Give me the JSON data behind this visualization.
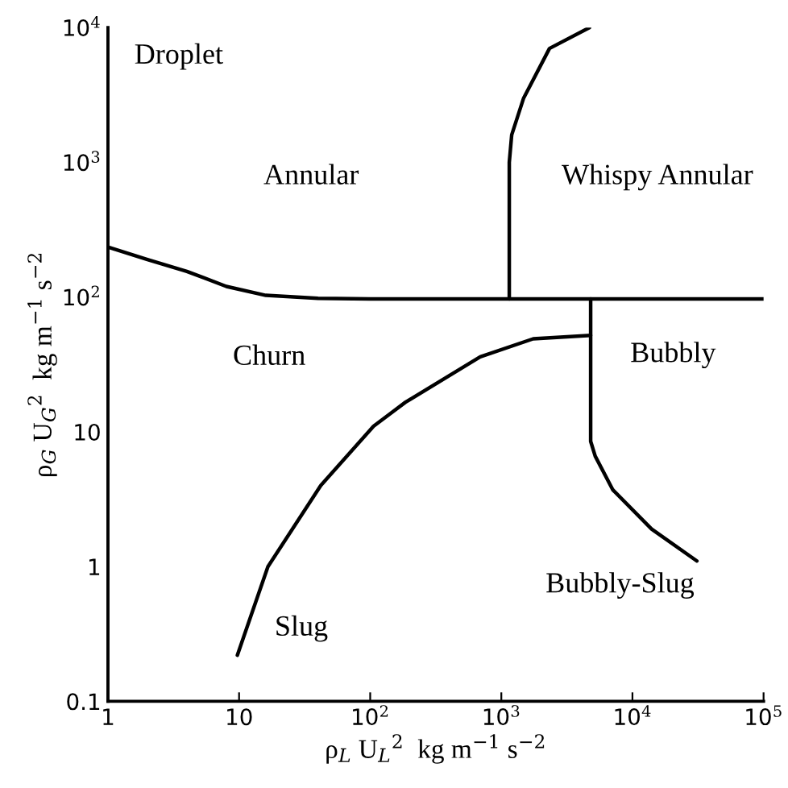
{
  "chart_data": {
    "type": "line",
    "xlabel": "ρ$_{L}$ U$_{L}$$^{2}$  kg m$^{−1}$ s$^{−2}$",
    "ylabel": "ρ$_{G}$ U$_{G}$$^{2}$  kg m$^{−1}$ s$^{−2}$",
    "log": "xy",
    "xlim": [
      1,
      100000
    ],
    "ylim": [
      0.1,
      10000
    ],
    "xticks": [
      1,
      10,
      {
        "value": 100,
        "label": "10$^{2}$"
      },
      {
        "value": 1000,
        "label": "10$^{3}$"
      },
      {
        "value": 10000,
        "label": "10$^{4}$"
      },
      {
        "value": 100000,
        "label": "10$^{5}$"
      }
    ],
    "yticks": [
      0.1,
      1,
      10,
      {
        "value": 100,
        "label": "10$^{2}$"
      },
      {
        "value": 1000,
        "label": "10$^{3}$"
      },
      {
        "value": 10000,
        "label": "10$^{4}$"
      }
    ],
    "grid": false,
    "marker": "none",
    "line_style": "solid",
    "series": [
      {
        "color": "#000000",
        "x": [
          1,
          2,
          4,
          8,
          16,
          40,
          100,
          1000,
          100000
        ],
        "values": [
          235,
          190,
          155,
          120,
          103,
          98,
          97,
          97,
          97
        ]
      },
      {
        "color": "#000000",
        "x": [
          1150,
          1150,
          1150,
          1200,
          1480,
          2330,
          4700
        ],
        "values": [
          97,
          620,
          1000,
          1600,
          3000,
          7000,
          10000
        ]
      },
      {
        "color": "#000000",
        "x": [
          4800,
          4800,
          4800,
          5200,
          7100,
          14000,
          31000
        ],
        "values": [
          97,
          52,
          8.5,
          6.6,
          3.7,
          1.9,
          1.1
        ]
      },
      {
        "color": "#000000",
        "x": [
          9.7,
          16.6,
          42,
          106,
          186,
          690,
          1750,
          4800
        ],
        "values": [
          0.22,
          1,
          4,
          11,
          16.6,
          36,
          49,
          52
        ]
      }
    ],
    "annotations": [
      "Droplet",
      "Annular",
      "Whispy Annular",
      "Churn",
      "Bubbly",
      "Bubbly-Slug",
      "Slug"
    ]
  }
}
